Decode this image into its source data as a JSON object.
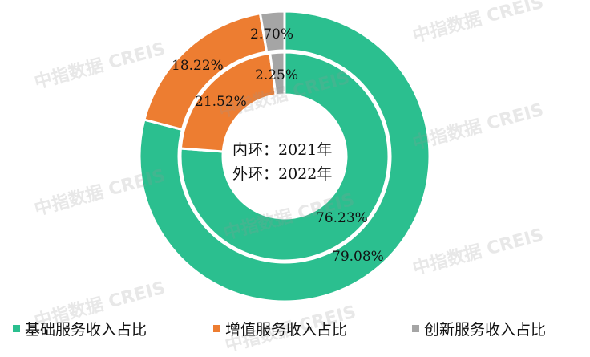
{
  "chart_data": {
    "type": "donut",
    "center_label_lines": [
      "内环：2021年",
      "外环：2022年"
    ],
    "categories": [
      "基础服务收入占比",
      "增值服务收入占比",
      "创新服务收入占比"
    ],
    "colors": [
      "#2bbf8f",
      "#ed7d31",
      "#a5a5a5"
    ],
    "series": [
      {
        "name": "2021年",
        "ring": "inner",
        "values": [
          76.23,
          21.52,
          2.25
        ],
        "labels": [
          "76.23%",
          "21.52%",
          "2.25%"
        ]
      },
      {
        "name": "2022年",
        "ring": "outer",
        "values": [
          79.08,
          18.22,
          2.7
        ],
        "labels": [
          "79.08%",
          "18.22%",
          "2.70%"
        ]
      }
    ],
    "legend_position": "bottom"
  },
  "watermark": "中指数据 CREIS"
}
